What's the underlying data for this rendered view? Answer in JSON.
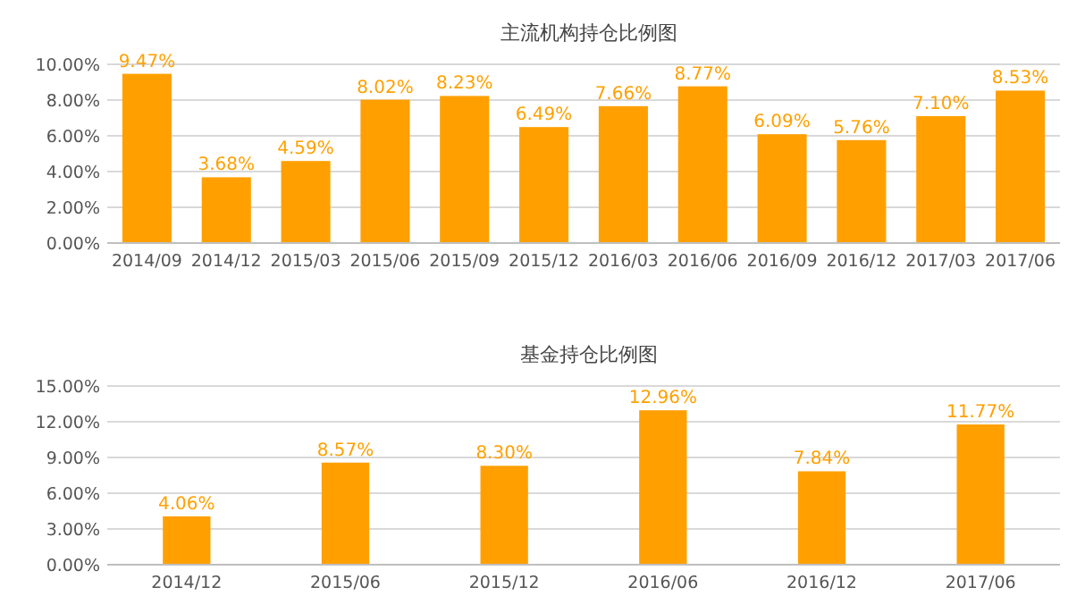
{
  "chart_data": [
    {
      "type": "bar",
      "title": "主流机构持仓比例图",
      "categories": [
        "2014/09",
        "2014/12",
        "2015/03",
        "2015/06",
        "2015/09",
        "2015/12",
        "2016/03",
        "2016/06",
        "2016/09",
        "2016/12",
        "2017/03",
        "2017/06"
      ],
      "values": [
        9.47,
        3.68,
        4.59,
        8.02,
        8.23,
        6.49,
        7.66,
        8.77,
        6.09,
        5.76,
        7.1,
        8.53
      ],
      "value_labels": [
        "9.47%",
        "3.68%",
        "4.59%",
        "8.02%",
        "8.23%",
        "6.49%",
        "7.66%",
        "8.77%",
        "6.09%",
        "5.76%",
        "7.10%",
        "8.53%"
      ],
      "color": "#ffa000",
      "ylim": [
        0,
        10
      ],
      "yticks": [
        {
          "value": 0,
          "label": "0.00%"
        },
        {
          "value": 2,
          "label": "2.00%"
        },
        {
          "value": 4,
          "label": "4.00%"
        },
        {
          "value": 6,
          "label": "6.00%"
        },
        {
          "value": 8,
          "label": "8.00%"
        },
        {
          "value": 10,
          "label": "10.00%"
        }
      ],
      "grid": "y"
    },
    {
      "type": "bar",
      "title": "基金持仓比例图",
      "categories": [
        "2014/12",
        "2015/06",
        "2015/12",
        "2016/06",
        "2016/12",
        "2017/06"
      ],
      "values": [
        4.06,
        8.57,
        8.3,
        12.96,
        7.84,
        11.77
      ],
      "value_labels": [
        "4.06%",
        "8.57%",
        "8.30%",
        "12.96%",
        "7.84%",
        "11.77%"
      ],
      "color": "#ffa000",
      "ylim": [
        0,
        15
      ],
      "yticks": [
        {
          "value": 0,
          "label": "0.00%"
        },
        {
          "value": 3,
          "label": "3.00%"
        },
        {
          "value": 6,
          "label": "6.00%"
        },
        {
          "value": 9,
          "label": "9.00%"
        },
        {
          "value": 12,
          "label": "12.00%"
        },
        {
          "value": 15,
          "label": "15.00%"
        }
      ],
      "grid": "y"
    }
  ]
}
